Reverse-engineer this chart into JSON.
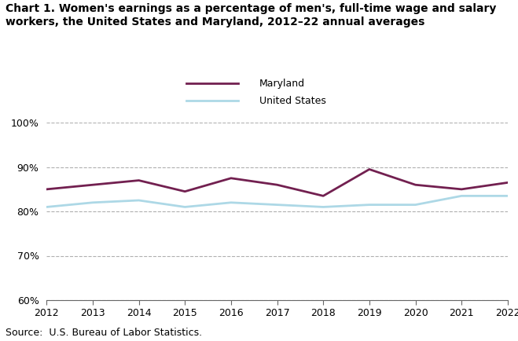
{
  "years": [
    2012,
    2013,
    2014,
    2015,
    2016,
    2017,
    2018,
    2019,
    2020,
    2021,
    2022
  ],
  "maryland": [
    85.0,
    86.0,
    87.0,
    84.5,
    87.5,
    86.0,
    83.5,
    89.5,
    86.0,
    85.0,
    86.5
  ],
  "united_states": [
    81.0,
    82.0,
    82.5,
    81.0,
    82.0,
    81.5,
    81.0,
    81.5,
    81.5,
    83.5,
    83.5
  ],
  "maryland_color": "#722050",
  "us_color": "#add8e6",
  "title_line1": "Chart 1. Women's earnings as a percentage of men's, full-time wage and salary",
  "title_line2": "workers, the United States and Maryland, 2012–22 annual averages",
  "legend_maryland": "Maryland",
  "legend_us": "United States",
  "ylim_min": 60,
  "ylim_max": 100,
  "yticks": [
    60,
    70,
    80,
    90,
    100
  ],
  "source_text": "Source:  U.S. Bureau of Labor Statistics.",
  "line_width": 2.0,
  "bg_color": "#ffffff",
  "grid_color": "#b0b0b0",
  "title_fontsize": 10.0,
  "tick_fontsize": 9.0,
  "source_fontsize": 9.0
}
